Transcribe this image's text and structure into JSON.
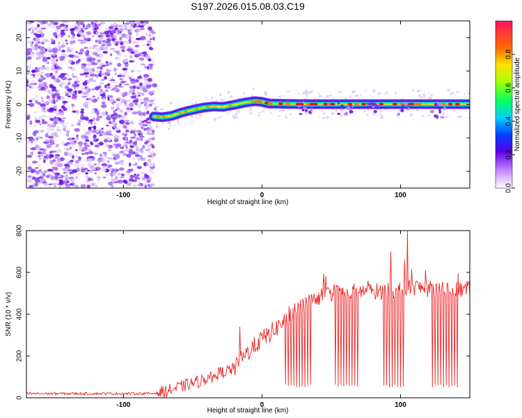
{
  "title": "S197.2026.015.08.03.C19",
  "chart_data": [
    {
      "type": "heatmap",
      "title": "S197.2026.015.08.03.C19",
      "xlabel": "Height of straight line (km)",
      "ylabel": "Frequency (Hz)",
      "xlim": [
        -170,
        150
      ],
      "ylim": [
        -25,
        25
      ],
      "xticks": [
        -100,
        0,
        100
      ],
      "yticks": [
        -20,
        -10,
        0,
        10,
        20
      ],
      "noise_region_x": [
        -170,
        -78
      ],
      "ridge": {
        "x": [
          -78,
          -72,
          -65,
          -58,
          -50,
          -42,
          -35,
          -28,
          -20,
          -12,
          -5,
          0,
          5,
          15,
          30,
          50,
          75,
          100,
          125,
          150
        ],
        "freq": [
          -3.6,
          -3.8,
          -3.4,
          -2.4,
          -1.6,
          -0.9,
          -0.6,
          -0.7,
          -0.1,
          0.6,
          1.0,
          0.8,
          0.3,
          0.2,
          0.1,
          0.1,
          0.1,
          0.1,
          0.1,
          0.1
        ]
      },
      "colorbar": {
        "label": "Normalized spectral amplitude",
        "ticks": [
          0.0,
          0.2,
          0.4,
          0.6,
          0.8
        ],
        "tick_labels": [
          "0.0",
          "0.2",
          "0.4",
          "0.6",
          "0.8"
        ],
        "range": [
          0,
          1
        ]
      }
    },
    {
      "type": "line",
      "xlabel": "Height of straight line (km)",
      "ylabel": "SNR (10 * v/v)",
      "xlim": [
        -170,
        150
      ],
      "ylim": [
        0,
        800
      ],
      "xticks": [
        -100,
        0,
        100
      ],
      "yticks": [
        0,
        200,
        400,
        600,
        800
      ],
      "color": "#ee2222",
      "envelope": {
        "x": [
          -170,
          -80,
          -70,
          -60,
          -50,
          -40,
          -30,
          -20,
          -10,
          0,
          10,
          20,
          30,
          40,
          50,
          60,
          70,
          80,
          90,
          100,
          110,
          120,
          130,
          140,
          150
        ],
        "snr": [
          20,
          20,
          30,
          50,
          70,
          90,
          120,
          140,
          220,
          280,
          330,
          400,
          440,
          480,
          500,
          510,
          510,
          510,
          510,
          520,
          530,
          520,
          515,
          515,
          520
        ]
      },
      "dropouts_x": [
        17,
        19,
        21,
        23,
        25,
        27,
        29,
        31,
        33,
        35,
        53,
        55,
        57,
        59,
        61,
        63,
        65,
        67,
        69,
        88,
        90,
        92,
        94,
        96,
        98,
        100,
        102,
        123,
        125,
        127,
        129,
        131,
        133,
        135,
        137,
        139,
        141
      ],
      "spikes": [
        {
          "x": -16,
          "snr": 340
        },
        {
          "x": 93,
          "snr": 700
        },
        {
          "x": 103,
          "snr": 660
        },
        {
          "x": 105,
          "snr": 800
        }
      ]
    }
  ]
}
